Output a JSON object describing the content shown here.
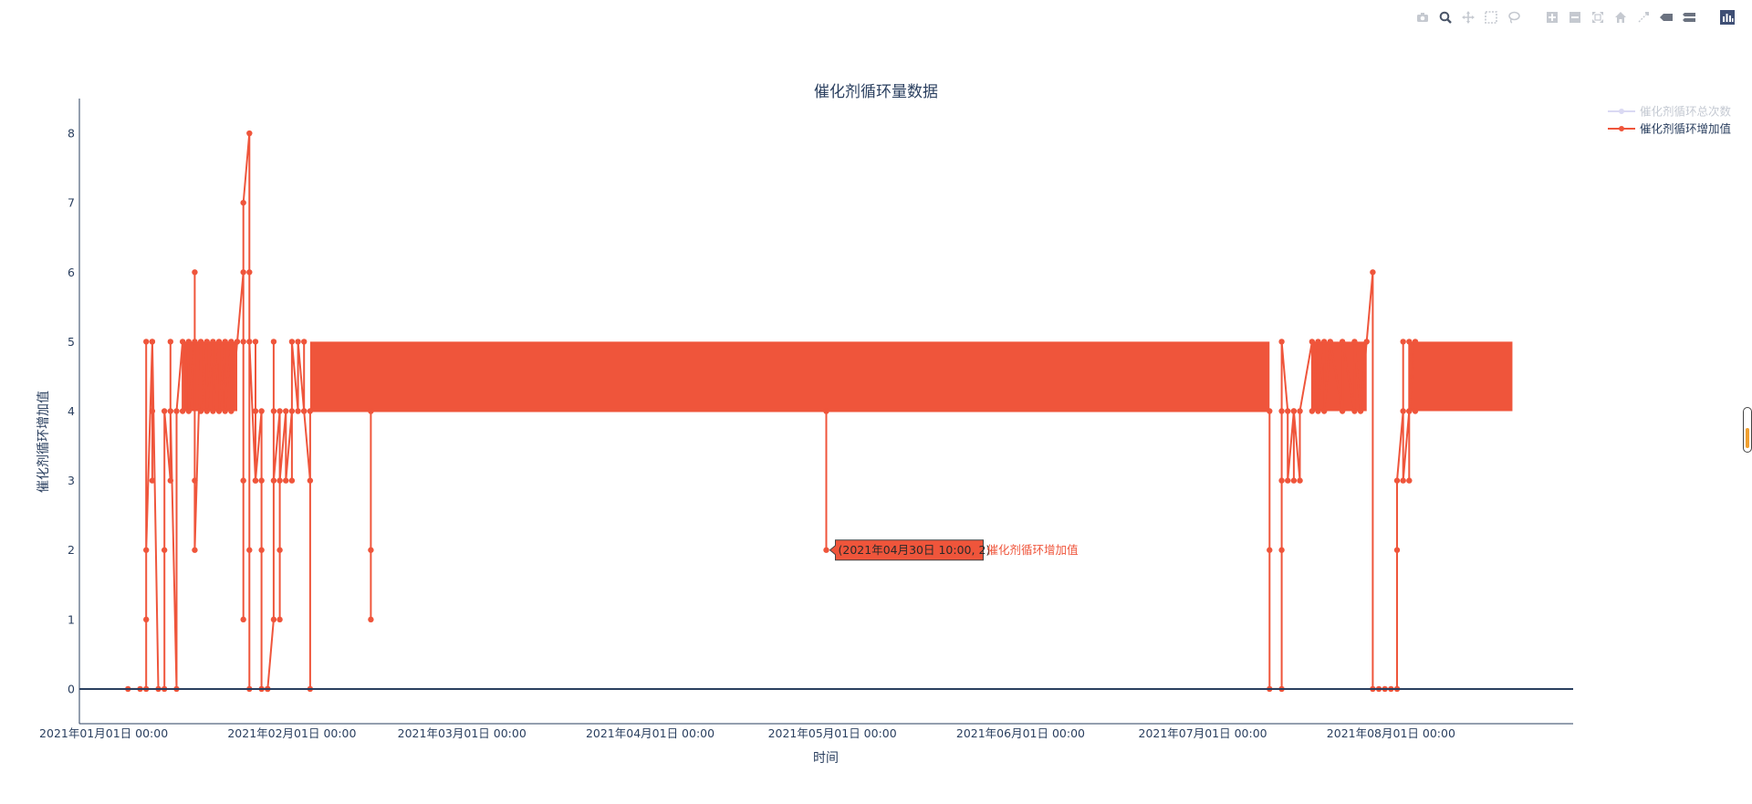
{
  "modebar": {
    "buttons": [
      {
        "name": "download-plot-icon",
        "icon": "camera"
      },
      {
        "name": "zoom-icon",
        "icon": "magnifier"
      },
      {
        "name": "pan-icon",
        "icon": "cross-arrows"
      },
      {
        "name": "box-select-icon",
        "icon": "dashed-box"
      },
      {
        "name": "lasso-select-icon",
        "icon": "lasso"
      },
      {
        "name": "zoom-in-icon",
        "icon": "plus-box"
      },
      {
        "name": "zoom-out-icon",
        "icon": "minus-box"
      },
      {
        "name": "autoscale-icon",
        "icon": "expand"
      },
      {
        "name": "reset-axes-icon",
        "icon": "home"
      },
      {
        "name": "spike-lines-icon",
        "icon": "spike"
      },
      {
        "name": "hover-closest-icon",
        "icon": "tag"
      },
      {
        "name": "hover-compare-icon",
        "icon": "double-tag"
      },
      {
        "name": "plotly-logo-icon",
        "icon": "bars"
      }
    ]
  },
  "chart_data": {
    "type": "line",
    "title": "催化剂循环量数据",
    "xlabel": "时间",
    "ylabel": "催化剂循环增加值",
    "x_ticks": [
      "2021年01月01日 00:00",
      "2021年02月01日 00:00",
      "2021年03月01日 00:00",
      "2021年04月01日 00:00",
      "2021年05月01日 00:00",
      "2021年06月01日 00:00",
      "2021年07月01日 00:00",
      "2021年08月01日 00:00"
    ],
    "y_ticks": [
      "0",
      "1",
      "2",
      "3",
      "4",
      "5",
      "6",
      "7",
      "8"
    ],
    "xlim": [
      "2020-12-28",
      "2021-08-31"
    ],
    "ylim": [
      -0.5,
      8.5
    ],
    "grid": false,
    "legend": {
      "placement": "top-right"
    },
    "series": [
      {
        "name": "催化剂循环总次数",
        "color": "#b6b4e8",
        "visible": false
      },
      {
        "name": "催化剂循环增加值",
        "color": "#ef553b",
        "visible": true,
        "points": [
          [
            "2021-01-05",
            0
          ],
          [
            "2021-01-07",
            0
          ],
          [
            "2021-01-08",
            0
          ],
          [
            "2021-01-08",
            1
          ],
          [
            "2021-01-08",
            5
          ],
          [
            "2021-01-08",
            2
          ],
          [
            "2021-01-09",
            5
          ],
          [
            "2021-01-09",
            4
          ],
          [
            "2021-01-09",
            3
          ],
          [
            "2021-01-09",
            5
          ],
          [
            "2021-01-10",
            0
          ],
          [
            "2021-01-11",
            0
          ],
          [
            "2021-01-11",
            2
          ],
          [
            "2021-01-11",
            4
          ],
          [
            "2021-01-12",
            3
          ],
          [
            "2021-01-12",
            5
          ],
          [
            "2021-01-12",
            4
          ],
          [
            "2021-01-13",
            0
          ],
          [
            "2021-01-13",
            4
          ],
          [
            "2021-01-14",
            5
          ],
          [
            "2021-01-14",
            4
          ],
          [
            "2021-01-15",
            5
          ],
          [
            "2021-01-15",
            4
          ],
          [
            "2021-01-16",
            5
          ],
          [
            "2021-01-16",
            6
          ],
          [
            "2021-01-16",
            3
          ],
          [
            "2021-01-16",
            2
          ],
          [
            "2021-01-17",
            5
          ],
          [
            "2021-01-17",
            4
          ],
          [
            "2021-01-18",
            5
          ],
          [
            "2021-01-18",
            4
          ],
          [
            "2021-01-19",
            5
          ],
          [
            "2021-01-19",
            4
          ],
          [
            "2021-01-20",
            5
          ],
          [
            "2021-01-20",
            4
          ],
          [
            "2021-01-21",
            5
          ],
          [
            "2021-01-21",
            4
          ],
          [
            "2021-01-22",
            5
          ],
          [
            "2021-01-22",
            4
          ],
          [
            "2021-01-23",
            5
          ],
          [
            "2021-01-24",
            6
          ],
          [
            "2021-01-24",
            3
          ],
          [
            "2021-01-24",
            1
          ],
          [
            "2021-01-24",
            5
          ],
          [
            "2021-01-24",
            7
          ],
          [
            "2021-01-25",
            8
          ],
          [
            "2021-01-25",
            6
          ],
          [
            "2021-01-25",
            0
          ],
          [
            "2021-01-25",
            2
          ],
          [
            "2021-01-25",
            5
          ],
          [
            "2021-01-26",
            3
          ],
          [
            "2021-01-26",
            4
          ],
          [
            "2021-01-26",
            5
          ],
          [
            "2021-01-26",
            3
          ],
          [
            "2021-01-27",
            4
          ],
          [
            "2021-01-27",
            3
          ],
          [
            "2021-01-27",
            2
          ],
          [
            "2021-01-27",
            0
          ],
          [
            "2021-01-28",
            0
          ],
          [
            "2021-01-28",
            0
          ],
          [
            "2021-01-29",
            1
          ],
          [
            "2021-01-29",
            4
          ],
          [
            "2021-01-29",
            5
          ],
          [
            "2021-01-29",
            3
          ],
          [
            "2021-01-30",
            4
          ],
          [
            "2021-01-30",
            1
          ],
          [
            "2021-01-30",
            2
          ],
          [
            "2021-01-30",
            3
          ],
          [
            "2021-01-31",
            4
          ],
          [
            "2021-01-31",
            3
          ],
          [
            "2021-02-01",
            4
          ],
          [
            "2021-02-01",
            3
          ],
          [
            "2021-02-01",
            5
          ],
          [
            "2021-02-02",
            4
          ],
          [
            "2021-02-02",
            5
          ],
          [
            "2021-02-03",
            4
          ],
          [
            "2021-02-03",
            5
          ],
          [
            "2021-02-03",
            4
          ],
          [
            "2021-02-04",
            3
          ],
          [
            "2021-02-04",
            0
          ],
          [
            "2021-02-04",
            4
          ],
          [
            "2021-02-14",
            4
          ],
          [
            "2021-02-14",
            2
          ],
          [
            "2021-02-14",
            1
          ],
          [
            "2021-02-14",
            4
          ],
          [
            "2021-04-30",
            4
          ],
          [
            "2021-04-30",
            2
          ],
          [
            "2021-04-30",
            4
          ],
          [
            "2021-07-12",
            4
          ],
          [
            "2021-07-12",
            2
          ],
          [
            "2021-07-12",
            0
          ],
          [
            "2021-07-14",
            0
          ],
          [
            "2021-07-14",
            2
          ],
          [
            "2021-07-14",
            3
          ],
          [
            "2021-07-14",
            4
          ],
          [
            "2021-07-14",
            5
          ],
          [
            "2021-07-15",
            4
          ],
          [
            "2021-07-15",
            3
          ],
          [
            "2021-07-16",
            4
          ],
          [
            "2021-07-16",
            3
          ],
          [
            "2021-07-16",
            4
          ],
          [
            "2021-07-17",
            3
          ],
          [
            "2021-07-17",
            4
          ],
          [
            "2021-07-19",
            5
          ],
          [
            "2021-07-19",
            4
          ],
          [
            "2021-07-20",
            5
          ],
          [
            "2021-07-20",
            4
          ],
          [
            "2021-07-21",
            5
          ],
          [
            "2021-07-21",
            4
          ],
          [
            "2021-07-22",
            5
          ],
          [
            "2021-07-24",
            4
          ],
          [
            "2021-07-24",
            5
          ],
          [
            "2021-07-26",
            4
          ],
          [
            "2021-07-26",
            5
          ],
          [
            "2021-07-27",
            4
          ],
          [
            "2021-07-28",
            5
          ],
          [
            "2021-07-29",
            6
          ],
          [
            "2021-07-29",
            0
          ],
          [
            "2021-07-30",
            0
          ],
          [
            "2021-07-31",
            0
          ],
          [
            "2021-08-01",
            0
          ],
          [
            "2021-08-02",
            0
          ],
          [
            "2021-08-02",
            2
          ],
          [
            "2021-08-02",
            3
          ],
          [
            "2021-08-03",
            4
          ],
          [
            "2021-08-03",
            5
          ],
          [
            "2021-08-03",
            3
          ],
          [
            "2021-08-04",
            4
          ],
          [
            "2021-08-04",
            5
          ],
          [
            "2021-08-04",
            3
          ],
          [
            "2021-08-04",
            4
          ],
          [
            "2021-08-05",
            5
          ],
          [
            "2021-08-05",
            4
          ]
        ],
        "dense_bands": [
          {
            "start": "2021-01-14",
            "end": "2021-01-23",
            "low": 4,
            "high": 5
          },
          {
            "start": "2021-02-04",
            "end": "2021-07-12",
            "low": 4,
            "high": 5
          },
          {
            "start": "2021-07-19",
            "end": "2021-07-28",
            "low": 4,
            "high": 5
          },
          {
            "start": "2021-08-04",
            "end": "2021-08-21",
            "low": 4,
            "high": 5
          }
        ]
      }
    ],
    "hover": {
      "x": "2021-04-30",
      "y": 2,
      "text": "(2021年04月30日 10:00, 2)",
      "series_label": "催化剂循环增加值"
    }
  }
}
